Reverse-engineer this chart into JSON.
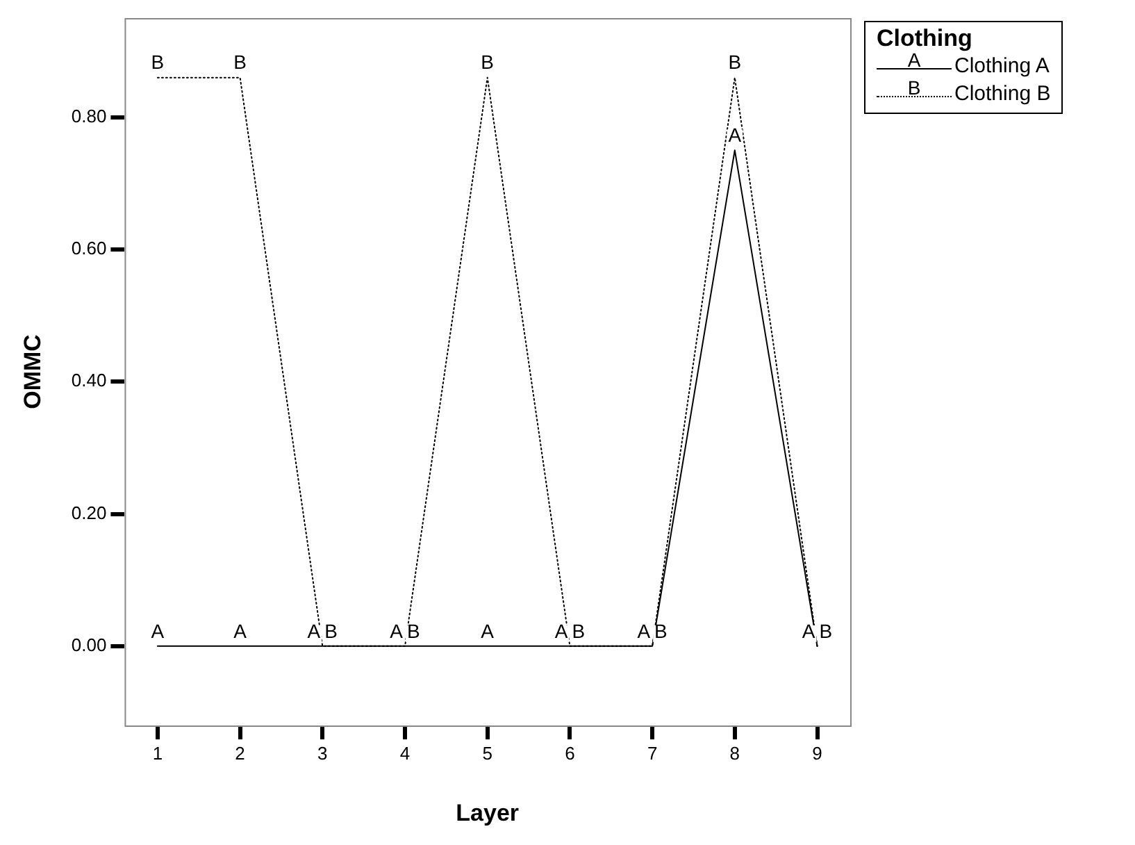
{
  "chart_data": {
    "type": "line",
    "xlabel": "Layer",
    "ylabel": "OMMC",
    "legend_title": "Clothing",
    "legend": "top right",
    "x": [
      1,
      2,
      3,
      4,
      5,
      6,
      7,
      8,
      9
    ],
    "xlim": [
      0.6,
      9.4
    ],
    "xticks": [
      1,
      2,
      3,
      4,
      5,
      6,
      7,
      8,
      9
    ],
    "ylim": [
      -0.12,
      0.95
    ],
    "yticks": [
      {
        "value": 0,
        "label": "0.00"
      },
      {
        "value": 0.2,
        "label": "0.20"
      },
      {
        "value": 0.4,
        "label": "0.40"
      },
      {
        "value": 0.6,
        "label": "0.60"
      },
      {
        "value": 0.8,
        "label": "0.80"
      }
    ],
    "grid": false,
    "marker": "none",
    "series": [
      {
        "name": "Clothing A",
        "color": "#000000",
        "line_style": "solid",
        "values": [
          0,
          0,
          0,
          0,
          0,
          0,
          0,
          0.75,
          0
        ],
        "value_labels": [
          "A",
          "A",
          "A",
          "A",
          "A",
          "A",
          "A",
          "A",
          "A"
        ]
      },
      {
        "name": "Clothing B",
        "color": "#000000",
        "line_style": "dotted",
        "values": [
          0.86,
          0.86,
          0,
          0,
          0.86,
          0,
          0,
          0.86,
          0
        ],
        "value_labels": [
          "B",
          "B",
          "B",
          "B",
          "B",
          "B",
          "B",
          "B",
          "B"
        ]
      }
    ]
  }
}
